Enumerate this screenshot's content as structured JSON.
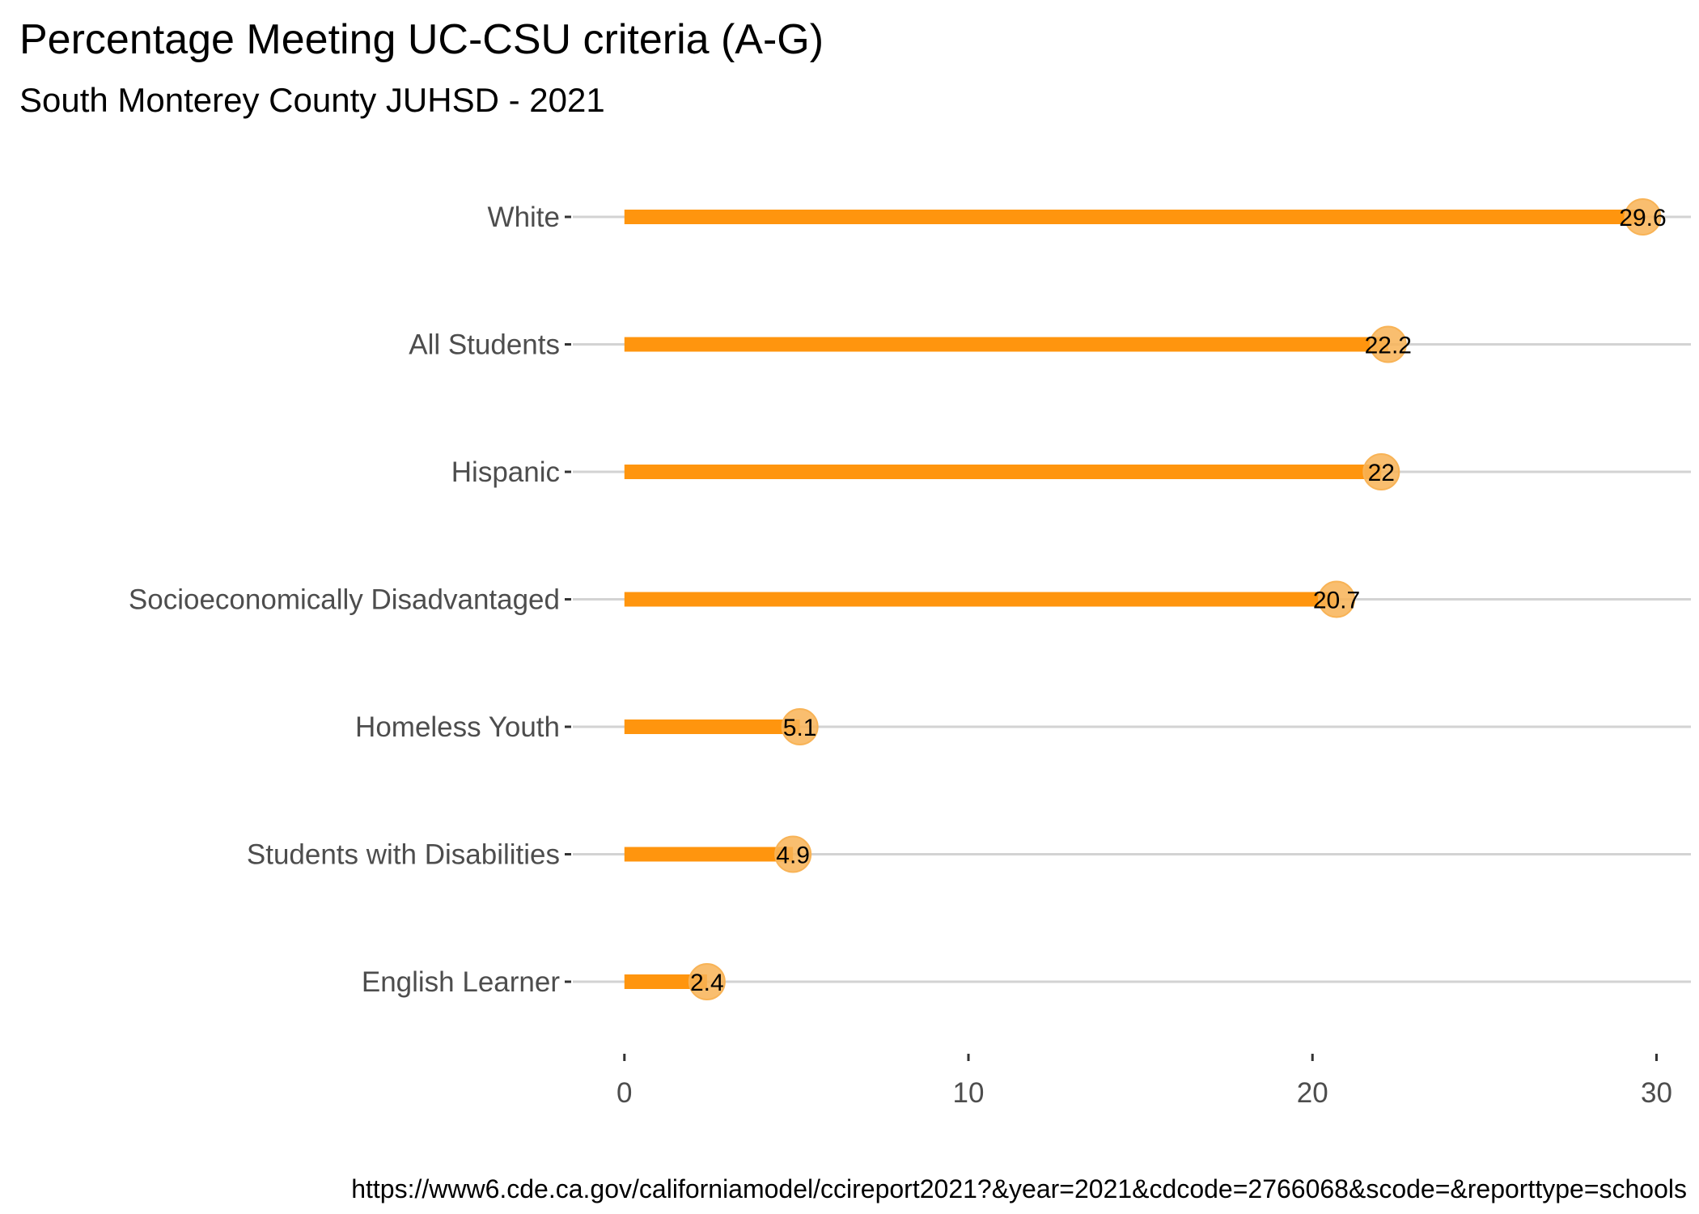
{
  "chart_data": {
    "type": "bar",
    "title": "Percentage Meeting UC-CSU criteria (A-G)",
    "subtitle": "South Monterey County JUHSD - 2021",
    "caption": "https://www6.cde.ca.gov/californiamodel/ccireport2021?&year=2021&cdcode=2766068&scode=&reporttype=schools",
    "orientation": "horizontal",
    "categories": [
      "White",
      "All Students",
      "Hispanic",
      "Socioeconomically Disadvantaged",
      "Homeless Youth",
      "Students with Disabilities",
      "English Learner"
    ],
    "values": [
      29.6,
      22.2,
      22,
      20.7,
      5.1,
      4.9,
      2.4
    ],
    "value_labels": [
      "29.6",
      "22.2",
      "22",
      "20.7",
      "5.1",
      "4.9",
      "2.4"
    ],
    "xticks": [
      0,
      10,
      20,
      30
    ],
    "xtick_labels": [
      "0",
      "10",
      "20",
      "30"
    ],
    "xlim": [
      -1.5,
      31
    ],
    "xlabel": "",
    "ylabel": "",
    "grid": "horizontal",
    "legend": "none",
    "colors": {
      "bar": "#FF950E",
      "point": "#F8B356",
      "grid": "#D3D3D3",
      "axis_text": "#4D4D4D"
    }
  }
}
